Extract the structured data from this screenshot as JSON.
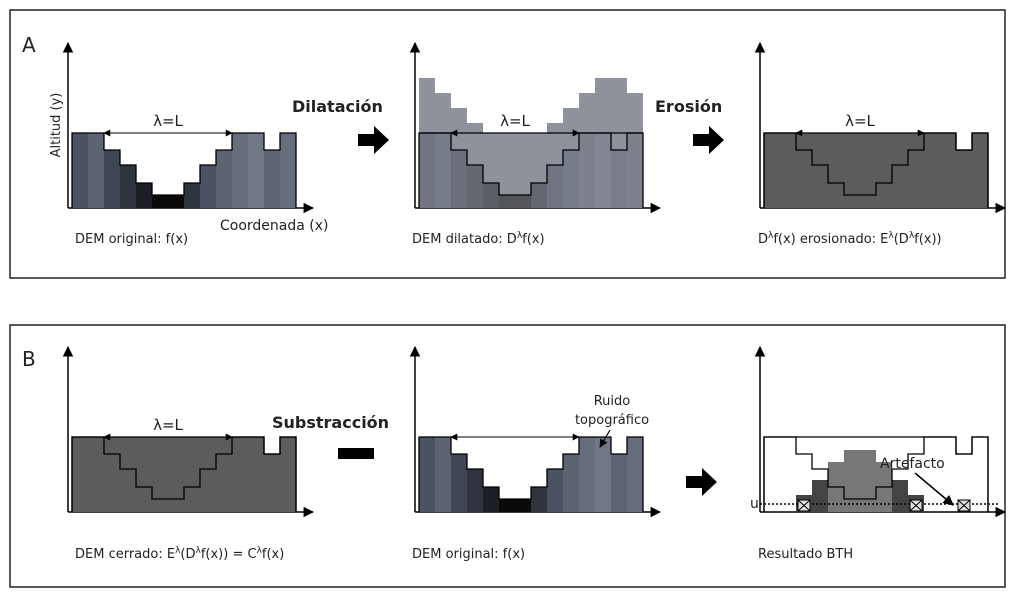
{
  "panel_a": {
    "label": "A",
    "y_axis_label": "Altitud (y)",
    "x_axis_label": "Coordenada (x)",
    "lambda_labels": [
      "λ=L",
      "λ=L",
      "λ=L"
    ],
    "operators": [
      "Dilatación",
      "Erosión"
    ],
    "captions": [
      [
        "DEM original: f(x)"
      ],
      [
        "DEM dilatado: D",
        "λ",
        "f(x)"
      ],
      [
        "D",
        "λ",
        "f(x) erosionado: E",
        "λ",
        "(D",
        "λ",
        "f(x))"
      ]
    ]
  },
  "panel_b": {
    "label": "B",
    "lambda_label": "λ=L",
    "operator": "Substracción",
    "annotations": {
      "noise": [
        "Ruido",
        "topográfico"
      ],
      "artifact": "Artefacto",
      "threshold": "u"
    },
    "captions": [
      [
        "DEM cerrado: E",
        "λ",
        "(D",
        "λ",
        "f(x)) = C",
        "λ",
        "f(x)"
      ],
      [
        "DEM original: f(x)"
      ],
      [
        "Resultado BTH"
      ]
    ]
  }
}
